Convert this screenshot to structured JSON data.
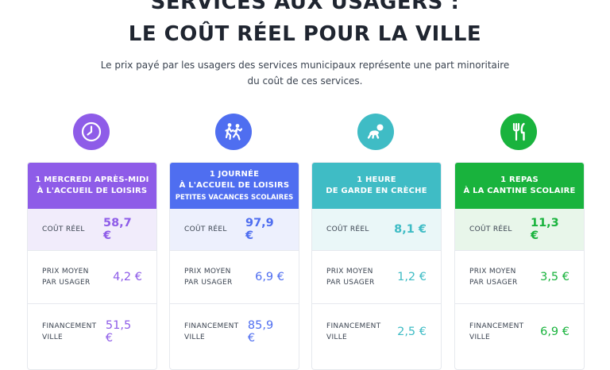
{
  "header": {
    "title_line1": "SERVICES AUX USAGERS :",
    "title_line2": "LE COÛT RÉEL POUR LA VILLE",
    "subtitle_line1": "Le prix payé par les usagers des services municipaux représente une part minoritaire",
    "subtitle_line2": "du coût de ces services."
  },
  "cards": [
    {
      "icon": "clock-icon",
      "color": "#8e5ce8",
      "light": "#f1ecfb",
      "head_line1": "1 MERCREDI APRÈS-MIDI",
      "head_line2": "À L'ACCUEIL DE LOISIRS",
      "head_line3": "",
      "rows": [
        {
          "label1": "COÛT RÉEL",
          "label2": "",
          "value": "58,7 €"
        },
        {
          "label1": "PRIX MOYEN",
          "label2": "PAR USAGER",
          "value": "4,2 €"
        },
        {
          "label1": "FINANCEMENT",
          "label2": "VILLE",
          "value": "51,5 €"
        }
      ]
    },
    {
      "icon": "children-running-icon",
      "color": "#4f6ef0",
      "light": "#edf0fd",
      "head_line1": "1 JOURNÉE",
      "head_line2": "À L'ACCUEIL DE LOISIRS",
      "head_line3": "PETITES VACANCES SCOLAIRES",
      "rows": [
        {
          "label1": "COÛT RÉEL",
          "label2": "",
          "value": "97,9 €"
        },
        {
          "label1": "PRIX MOYEN",
          "label2": "PAR USAGER",
          "value": "6,9 €"
        },
        {
          "label1": "FINANCEMENT",
          "label2": "VILLE",
          "value": "85,9 €"
        }
      ]
    },
    {
      "icon": "baby-crawling-icon",
      "color": "#3fbcc5",
      "light": "#eaf7f8",
      "head_line1": "1 HEURE",
      "head_line2": "DE GARDE EN CRÈCHE",
      "head_line3": "",
      "rows": [
        {
          "label1": "COÛT RÉEL",
          "label2": "",
          "value": "8,1 €"
        },
        {
          "label1": "PRIX MOYEN",
          "label2": "PAR USAGER",
          "value": "1,2 €"
        },
        {
          "label1": "FINANCEMENT",
          "label2": "VILLE",
          "value": "2,5 €"
        }
      ]
    },
    {
      "icon": "fork-knife-icon",
      "color": "#19b33d",
      "light": "#e8f6ea",
      "head_line1": "1 REPAS",
      "head_line2": "À LA CANTINE SCOLAIRE",
      "head_line3": "",
      "rows": [
        {
          "label1": "COÛT RÉEL",
          "label2": "",
          "value": "11,3 €"
        },
        {
          "label1": "PRIX MOYEN",
          "label2": "PAR USAGER",
          "value": "3,5 €"
        },
        {
          "label1": "FINANCEMENT",
          "label2": "VILLE",
          "value": "6,9 €"
        }
      ]
    }
  ]
}
